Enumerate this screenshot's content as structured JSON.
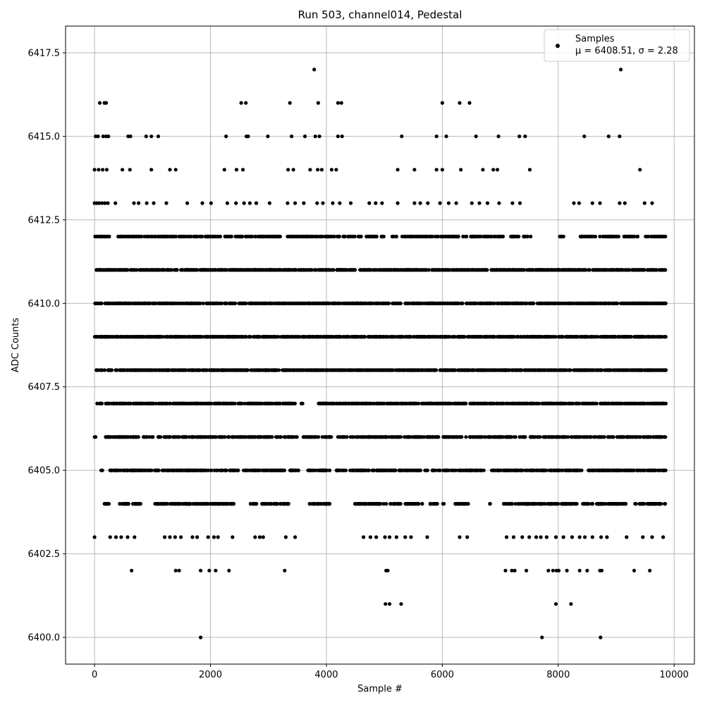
{
  "chart_data": {
    "type": "scatter",
    "title": "Run 503, channel014, Pedestal",
    "xlabel": "Sample #",
    "ylabel": "ADC Counts",
    "xlim": [
      -500,
      10350
    ],
    "ylim": [
      6399.2,
      6418.3
    ],
    "xticks": [
      0,
      2000,
      4000,
      6000,
      8000,
      10000
    ],
    "xtick_labels": [
      "0",
      "2000",
      "4000",
      "6000",
      "8000",
      "10000"
    ],
    "yticks": [
      6400.0,
      6402.5,
      6405.0,
      6407.5,
      6410.0,
      6412.5,
      6415.0,
      6417.5
    ],
    "ytick_labels": [
      "6400.0",
      "6402.5",
      "6405.0",
      "6407.5",
      "6410.0",
      "6412.5",
      "6415.0",
      "6417.5"
    ],
    "grid": true,
    "legend_position": "top-right",
    "series": [
      {
        "name": "Samples",
        "label_line2": "μ = 6408.51, σ = 2.28",
        "color": "#000000",
        "marker": "dot",
        "points": [
          [
            3790,
            6417
          ],
          [
            9080,
            6417
          ],
          [
            90,
            6416
          ],
          [
            170,
            6416
          ],
          [
            200,
            6416
          ],
          [
            2530,
            6416
          ],
          [
            2610,
            6416
          ],
          [
            3370,
            6416
          ],
          [
            3860,
            6416
          ],
          [
            4200,
            6416
          ],
          [
            4260,
            6416
          ],
          [
            6000,
            6416
          ],
          [
            6300,
            6416
          ],
          [
            6470,
            6416
          ],
          [
            20,
            6415
          ],
          [
            60,
            6415
          ],
          [
            150,
            6415
          ],
          [
            200,
            6415
          ],
          [
            240,
            6415
          ],
          [
            580,
            6415
          ],
          [
            620,
            6415
          ],
          [
            890,
            6415
          ],
          [
            980,
            6415
          ],
          [
            1100,
            6415
          ],
          [
            2270,
            6415
          ],
          [
            2620,
            6415
          ],
          [
            2650,
            6415
          ],
          [
            2990,
            6415
          ],
          [
            3400,
            6415
          ],
          [
            3630,
            6415
          ],
          [
            3810,
            6415
          ],
          [
            3880,
            6415
          ],
          [
            4200,
            6415
          ],
          [
            4270,
            6415
          ],
          [
            5300,
            6415
          ],
          [
            5900,
            6415
          ],
          [
            6070,
            6415
          ],
          [
            6580,
            6415
          ],
          [
            6970,
            6415
          ],
          [
            7330,
            6415
          ],
          [
            7430,
            6415
          ],
          [
            8450,
            6415
          ],
          [
            8870,
            6415
          ],
          [
            9060,
            6415
          ],
          [
            0,
            6414
          ],
          [
            70,
            6414
          ],
          [
            140,
            6414
          ],
          [
            210,
            6414
          ],
          [
            480,
            6414
          ],
          [
            610,
            6414
          ],
          [
            980,
            6414
          ],
          [
            1300,
            6414
          ],
          [
            1400,
            6414
          ],
          [
            2240,
            6414
          ],
          [
            2450,
            6414
          ],
          [
            2560,
            6414
          ],
          [
            3340,
            6414
          ],
          [
            3430,
            6414
          ],
          [
            3720,
            6414
          ],
          [
            3850,
            6414
          ],
          [
            3920,
            6414
          ],
          [
            4090,
            6414
          ],
          [
            4170,
            6414
          ],
          [
            5230,
            6414
          ],
          [
            5520,
            6414
          ],
          [
            5900,
            6414
          ],
          [
            6000,
            6414
          ],
          [
            6320,
            6414
          ],
          [
            6700,
            6414
          ],
          [
            6880,
            6414
          ],
          [
            6950,
            6414
          ],
          [
            7510,
            6414
          ],
          [
            9410,
            6414
          ],
          [
            0,
            6413
          ],
          [
            40,
            6413
          ],
          [
            80,
            6413
          ],
          [
            130,
            6413
          ],
          [
            180,
            6413
          ],
          [
            230,
            6413
          ],
          [
            360,
            6413
          ],
          [
            680,
            6413
          ],
          [
            760,
            6413
          ],
          [
            900,
            6413
          ],
          [
            1020,
            6413
          ],
          [
            1240,
            6413
          ],
          [
            1600,
            6413
          ],
          [
            1860,
            6413
          ],
          [
            2010,
            6413
          ],
          [
            2290,
            6413
          ],
          [
            2440,
            6413
          ],
          [
            2580,
            6413
          ],
          [
            2680,
            6413
          ],
          [
            2790,
            6413
          ],
          [
            3020,
            6413
          ],
          [
            3330,
            6413
          ],
          [
            3460,
            6413
          ],
          [
            3610,
            6413
          ],
          [
            3840,
            6413
          ],
          [
            3940,
            6413
          ],
          [
            4110,
            6413
          ],
          [
            4230,
            6413
          ],
          [
            4420,
            6413
          ],
          [
            4740,
            6413
          ],
          [
            4850,
            6413
          ],
          [
            4960,
            6413
          ],
          [
            5230,
            6413
          ],
          [
            5520,
            6413
          ],
          [
            5620,
            6413
          ],
          [
            5750,
            6413
          ],
          [
            5960,
            6413
          ],
          [
            6110,
            6413
          ],
          [
            6240,
            6413
          ],
          [
            6510,
            6413
          ],
          [
            6640,
            6413
          ],
          [
            6780,
            6413
          ],
          [
            6980,
            6413
          ],
          [
            7210,
            6413
          ],
          [
            7340,
            6413
          ],
          [
            8270,
            6413
          ],
          [
            8360,
            6413
          ],
          [
            8590,
            6413
          ],
          [
            8720,
            6413
          ],
          [
            9060,
            6413
          ],
          [
            9150,
            6413
          ],
          [
            9490,
            6413
          ],
          [
            9620,
            6413
          ],
          [
            0,
            6403
          ],
          [
            270,
            6403
          ],
          [
            370,
            6403
          ],
          [
            460,
            6403
          ],
          [
            570,
            6403
          ],
          [
            690,
            6403
          ],
          [
            1210,
            6403
          ],
          [
            1300,
            6403
          ],
          [
            1390,
            6403
          ],
          [
            1490,
            6403
          ],
          [
            1690,
            6403
          ],
          [
            1770,
            6403
          ],
          [
            1960,
            6403
          ],
          [
            2060,
            6403
          ],
          [
            2130,
            6403
          ],
          [
            2380,
            6403
          ],
          [
            2770,
            6403
          ],
          [
            2850,
            6403
          ],
          [
            2910,
            6403
          ],
          [
            3300,
            6403
          ],
          [
            3460,
            6403
          ],
          [
            4640,
            6403
          ],
          [
            4760,
            6403
          ],
          [
            4860,
            6403
          ],
          [
            5010,
            6403
          ],
          [
            5090,
            6403
          ],
          [
            5210,
            6403
          ],
          [
            5360,
            6403
          ],
          [
            5460,
            6403
          ],
          [
            5740,
            6403
          ],
          [
            6300,
            6403
          ],
          [
            6430,
            6403
          ],
          [
            7110,
            6403
          ],
          [
            7230,
            6403
          ],
          [
            7380,
            6403
          ],
          [
            7500,
            6403
          ],
          [
            7620,
            6403
          ],
          [
            7700,
            6403
          ],
          [
            7800,
            6403
          ],
          [
            7960,
            6403
          ],
          [
            8090,
            6403
          ],
          [
            8240,
            6403
          ],
          [
            8370,
            6403
          ],
          [
            8460,
            6403
          ],
          [
            8590,
            6403
          ],
          [
            8740,
            6403
          ],
          [
            8840,
            6403
          ],
          [
            9180,
            6403
          ],
          [
            9460,
            6403
          ],
          [
            9620,
            6403
          ],
          [
            9810,
            6403
          ],
          [
            640,
            6402
          ],
          [
            1400,
            6402
          ],
          [
            1460,
            6402
          ],
          [
            1830,
            6402
          ],
          [
            1980,
            6402
          ],
          [
            2090,
            6402
          ],
          [
            2320,
            6402
          ],
          [
            3280,
            6402
          ],
          [
            5030,
            6402
          ],
          [
            5060,
            6402
          ],
          [
            7090,
            6402
          ],
          [
            7200,
            6402
          ],
          [
            7250,
            6402
          ],
          [
            7450,
            6402
          ],
          [
            7830,
            6402
          ],
          [
            7910,
            6402
          ],
          [
            7970,
            6402
          ],
          [
            8010,
            6402
          ],
          [
            8150,
            6402
          ],
          [
            8370,
            6402
          ],
          [
            8500,
            6402
          ],
          [
            8720,
            6402
          ],
          [
            8750,
            6402
          ],
          [
            9310,
            6402
          ],
          [
            9580,
            6402
          ],
          [
            5020,
            6401
          ],
          [
            5090,
            6401
          ],
          [
            5290,
            6401
          ],
          [
            7960,
            6401
          ],
          [
            8220,
            6401
          ],
          [
            1830,
            6400
          ],
          [
            7720,
            6400
          ],
          [
            8730,
            6400
          ]
        ]
      }
    ],
    "dense_levels": [
      {
        "y": 6412,
        "segments": [
          [
            0,
            260
          ],
          [
            380,
            2180
          ],
          [
            2240,
            2560
          ],
          [
            2600,
            3260
          ],
          [
            3320,
            4600
          ],
          [
            4680,
            5000
          ],
          [
            5120,
            5230
          ],
          [
            5300,
            6420
          ],
          [
            6480,
            7100
          ],
          [
            7160,
            7540
          ],
          [
            8000,
            8100
          ],
          [
            8380,
            8670
          ],
          [
            8700,
            9390
          ],
          [
            9500,
            9860
          ]
        ],
        "count": 560
      },
      {
        "y": 6411,
        "segments": [
          [
            0,
            7420
          ],
          [
            7460,
            9860
          ]
        ],
        "count": 920
      },
      {
        "y": 6410,
        "segments": [
          [
            0,
            7580
          ],
          [
            7640,
            9860
          ]
        ],
        "count": 950
      },
      {
        "y": 6409,
        "segments": [
          [
            0,
            9860
          ]
        ],
        "count": 1000
      },
      {
        "y": 6408,
        "segments": [
          [
            0,
            5900
          ],
          [
            5960,
            9860
          ]
        ],
        "count": 960
      },
      {
        "y": 6407,
        "segments": [
          [
            40,
            140
          ],
          [
            190,
            620
          ],
          [
            660,
            3460
          ],
          [
            3560,
            3600
          ],
          [
            3850,
            7060
          ],
          [
            7100,
            9860
          ]
        ],
        "count": 780
      },
      {
        "y": 6406,
        "segments": [
          [
            0,
            20
          ],
          [
            190,
            1140
          ],
          [
            1180,
            2260
          ],
          [
            2300,
            3500
          ],
          [
            3560,
            4090
          ],
          [
            4190,
            4360
          ],
          [
            4410,
            5950
          ],
          [
            6010,
            7060
          ],
          [
            7080,
            7450
          ],
          [
            7500,
            9860
          ]
        ],
        "count": 700
      },
      {
        "y": 6405,
        "segments": [
          [
            110,
            140
          ],
          [
            250,
            1120
          ],
          [
            1160,
            2490
          ],
          [
            2560,
            3300
          ],
          [
            3360,
            3540
          ],
          [
            3660,
            4060
          ],
          [
            4170,
            4340
          ],
          [
            4410,
            5980
          ],
          [
            6010,
            6240
          ],
          [
            6280,
            6740
          ],
          [
            6850,
            7020
          ],
          [
            7050,
            8420
          ],
          [
            8500,
            9860
          ]
        ],
        "count": 680
      },
      {
        "y": 6404,
        "segments": [
          [
            170,
            280
          ],
          [
            420,
            850
          ],
          [
            1020,
            2420
          ],
          [
            2690,
            2800
          ],
          [
            2880,
            3360
          ],
          [
            3690,
            4060
          ],
          [
            4480,
            5290
          ],
          [
            5340,
            5660
          ],
          [
            5770,
            5920
          ],
          [
            6000,
            6030
          ],
          [
            6210,
            6460
          ],
          [
            6800,
            6830
          ],
          [
            7060,
            7220
          ],
          [
            7250,
            8320
          ],
          [
            8410,
            9200
          ],
          [
            9320,
            9870
          ]
        ],
        "count": 560
      }
    ]
  }
}
